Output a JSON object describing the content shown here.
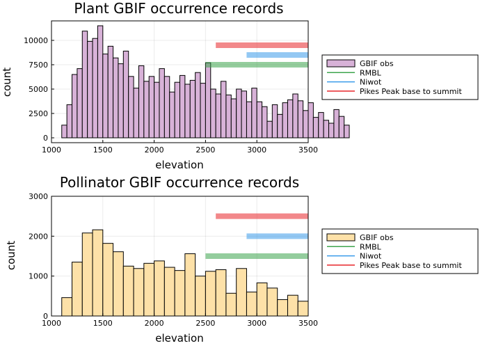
{
  "chart_data": [
    {
      "type": "bar",
      "title": "Plant GBIF occurrence records",
      "xlabel": "elevation",
      "ylabel": "count",
      "xlim": [
        1000,
        3500
      ],
      "ylim": [
        -500,
        12000
      ],
      "xticks": [
        "1000",
        "1500",
        "2000",
        "2500",
        "3000",
        "3500"
      ],
      "xtick_values": [
        1000,
        1500,
        2000,
        2500,
        3000,
        3500
      ],
      "yticks": [
        "0",
        "2500",
        "5000",
        "7500",
        "10000"
      ],
      "ytick_values": [
        0,
        2500,
        5000,
        7500,
        10000
      ],
      "grid": true,
      "legend_position": "right",
      "bin_start": 1100,
      "bin_width": 50,
      "values": [
        1300,
        3400,
        6500,
        7100,
        10950,
        9900,
        10200,
        11500,
        8600,
        9400,
        8200,
        7600,
        8900,
        6300,
        5100,
        7400,
        5800,
        6300,
        5700,
        7100,
        6300,
        4700,
        5700,
        6400,
        5500,
        5900,
        6700,
        5600,
        7700,
        5000,
        4500,
        5800,
        4400,
        4000,
        5000,
        4800,
        3700,
        5100,
        3700,
        3200,
        1700,
        3400,
        2400,
        3600,
        3900,
        4500,
        3800,
        2800,
        3600,
        2100,
        2600,
        1800,
        1500,
        2900,
        2200,
        1300
      ],
      "series": [
        {
          "name": "GBIF obs",
          "color": "#d8b2d8",
          "kind": "histogram"
        },
        {
          "name": "RMBL",
          "color": "#3da44d",
          "range": [
            2500,
            3500
          ],
          "y": 7500
        },
        {
          "name": "Niwot",
          "color": "#3a9bea",
          "range": [
            2900,
            3500
          ],
          "y": 8500
        },
        {
          "name": "Pikes Peak base to summit",
          "color": "#e8262a",
          "range": [
            2600,
            3500
          ],
          "y": 9500
        }
      ]
    },
    {
      "type": "bar",
      "title": "Pollinator GBIF occurrence records",
      "xlabel": "elevation",
      "ylabel": "count",
      "xlim": [
        1000,
        3500
      ],
      "ylim": [
        0,
        3000
      ],
      "xticks": [
        "1000",
        "1500",
        "2000",
        "2500",
        "3000",
        "3500"
      ],
      "xtick_values": [
        1000,
        1500,
        2000,
        2500,
        3000,
        3500
      ],
      "yticks": [
        "0",
        "1000",
        "2000",
        "3000"
      ],
      "ytick_values": [
        0,
        1000,
        2000,
        3000
      ],
      "grid": true,
      "legend_position": "right",
      "bin_start": 1100,
      "bin_width": 100,
      "values": [
        460,
        1350,
        2080,
        2160,
        1820,
        1610,
        1250,
        1190,
        1320,
        1380,
        1220,
        1140,
        1560,
        1000,
        1120,
        1160,
        570,
        1190,
        600,
        830,
        700,
        410,
        520,
        370
      ],
      "series": [
        {
          "name": "GBIF obs",
          "color": "#fde1a8",
          "kind": "histogram"
        },
        {
          "name": "RMBL",
          "color": "#3da44d",
          "range": [
            2500,
            3500
          ],
          "y": 1500
        },
        {
          "name": "Niwot",
          "color": "#3a9bea",
          "range": [
            2900,
            3500
          ],
          "y": 2000
        },
        {
          "name": "Pikes Peak base to summit",
          "color": "#e8262a",
          "range": [
            2600,
            3500
          ],
          "y": 2500
        }
      ]
    }
  ]
}
